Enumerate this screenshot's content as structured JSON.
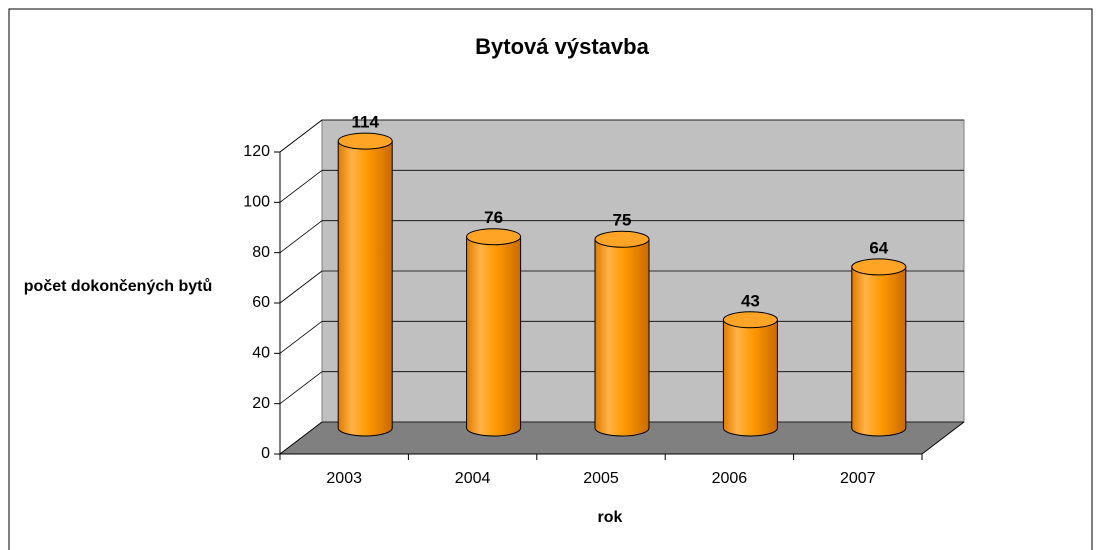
{
  "chart_data": {
    "type": "bar",
    "title": "Bytová výstavba",
    "x_label": "rok",
    "y_label": "počet dokončených bytů",
    "categories": [
      "2003",
      "2004",
      "2005",
      "2006",
      "2007"
    ],
    "values": [
      114,
      76,
      75,
      43,
      64
    ],
    "color": "#ff9900",
    "ylim": [
      0,
      120
    ],
    "yticks": [
      0,
      20,
      40,
      60,
      80,
      100,
      120
    ],
    "grid": true
  }
}
